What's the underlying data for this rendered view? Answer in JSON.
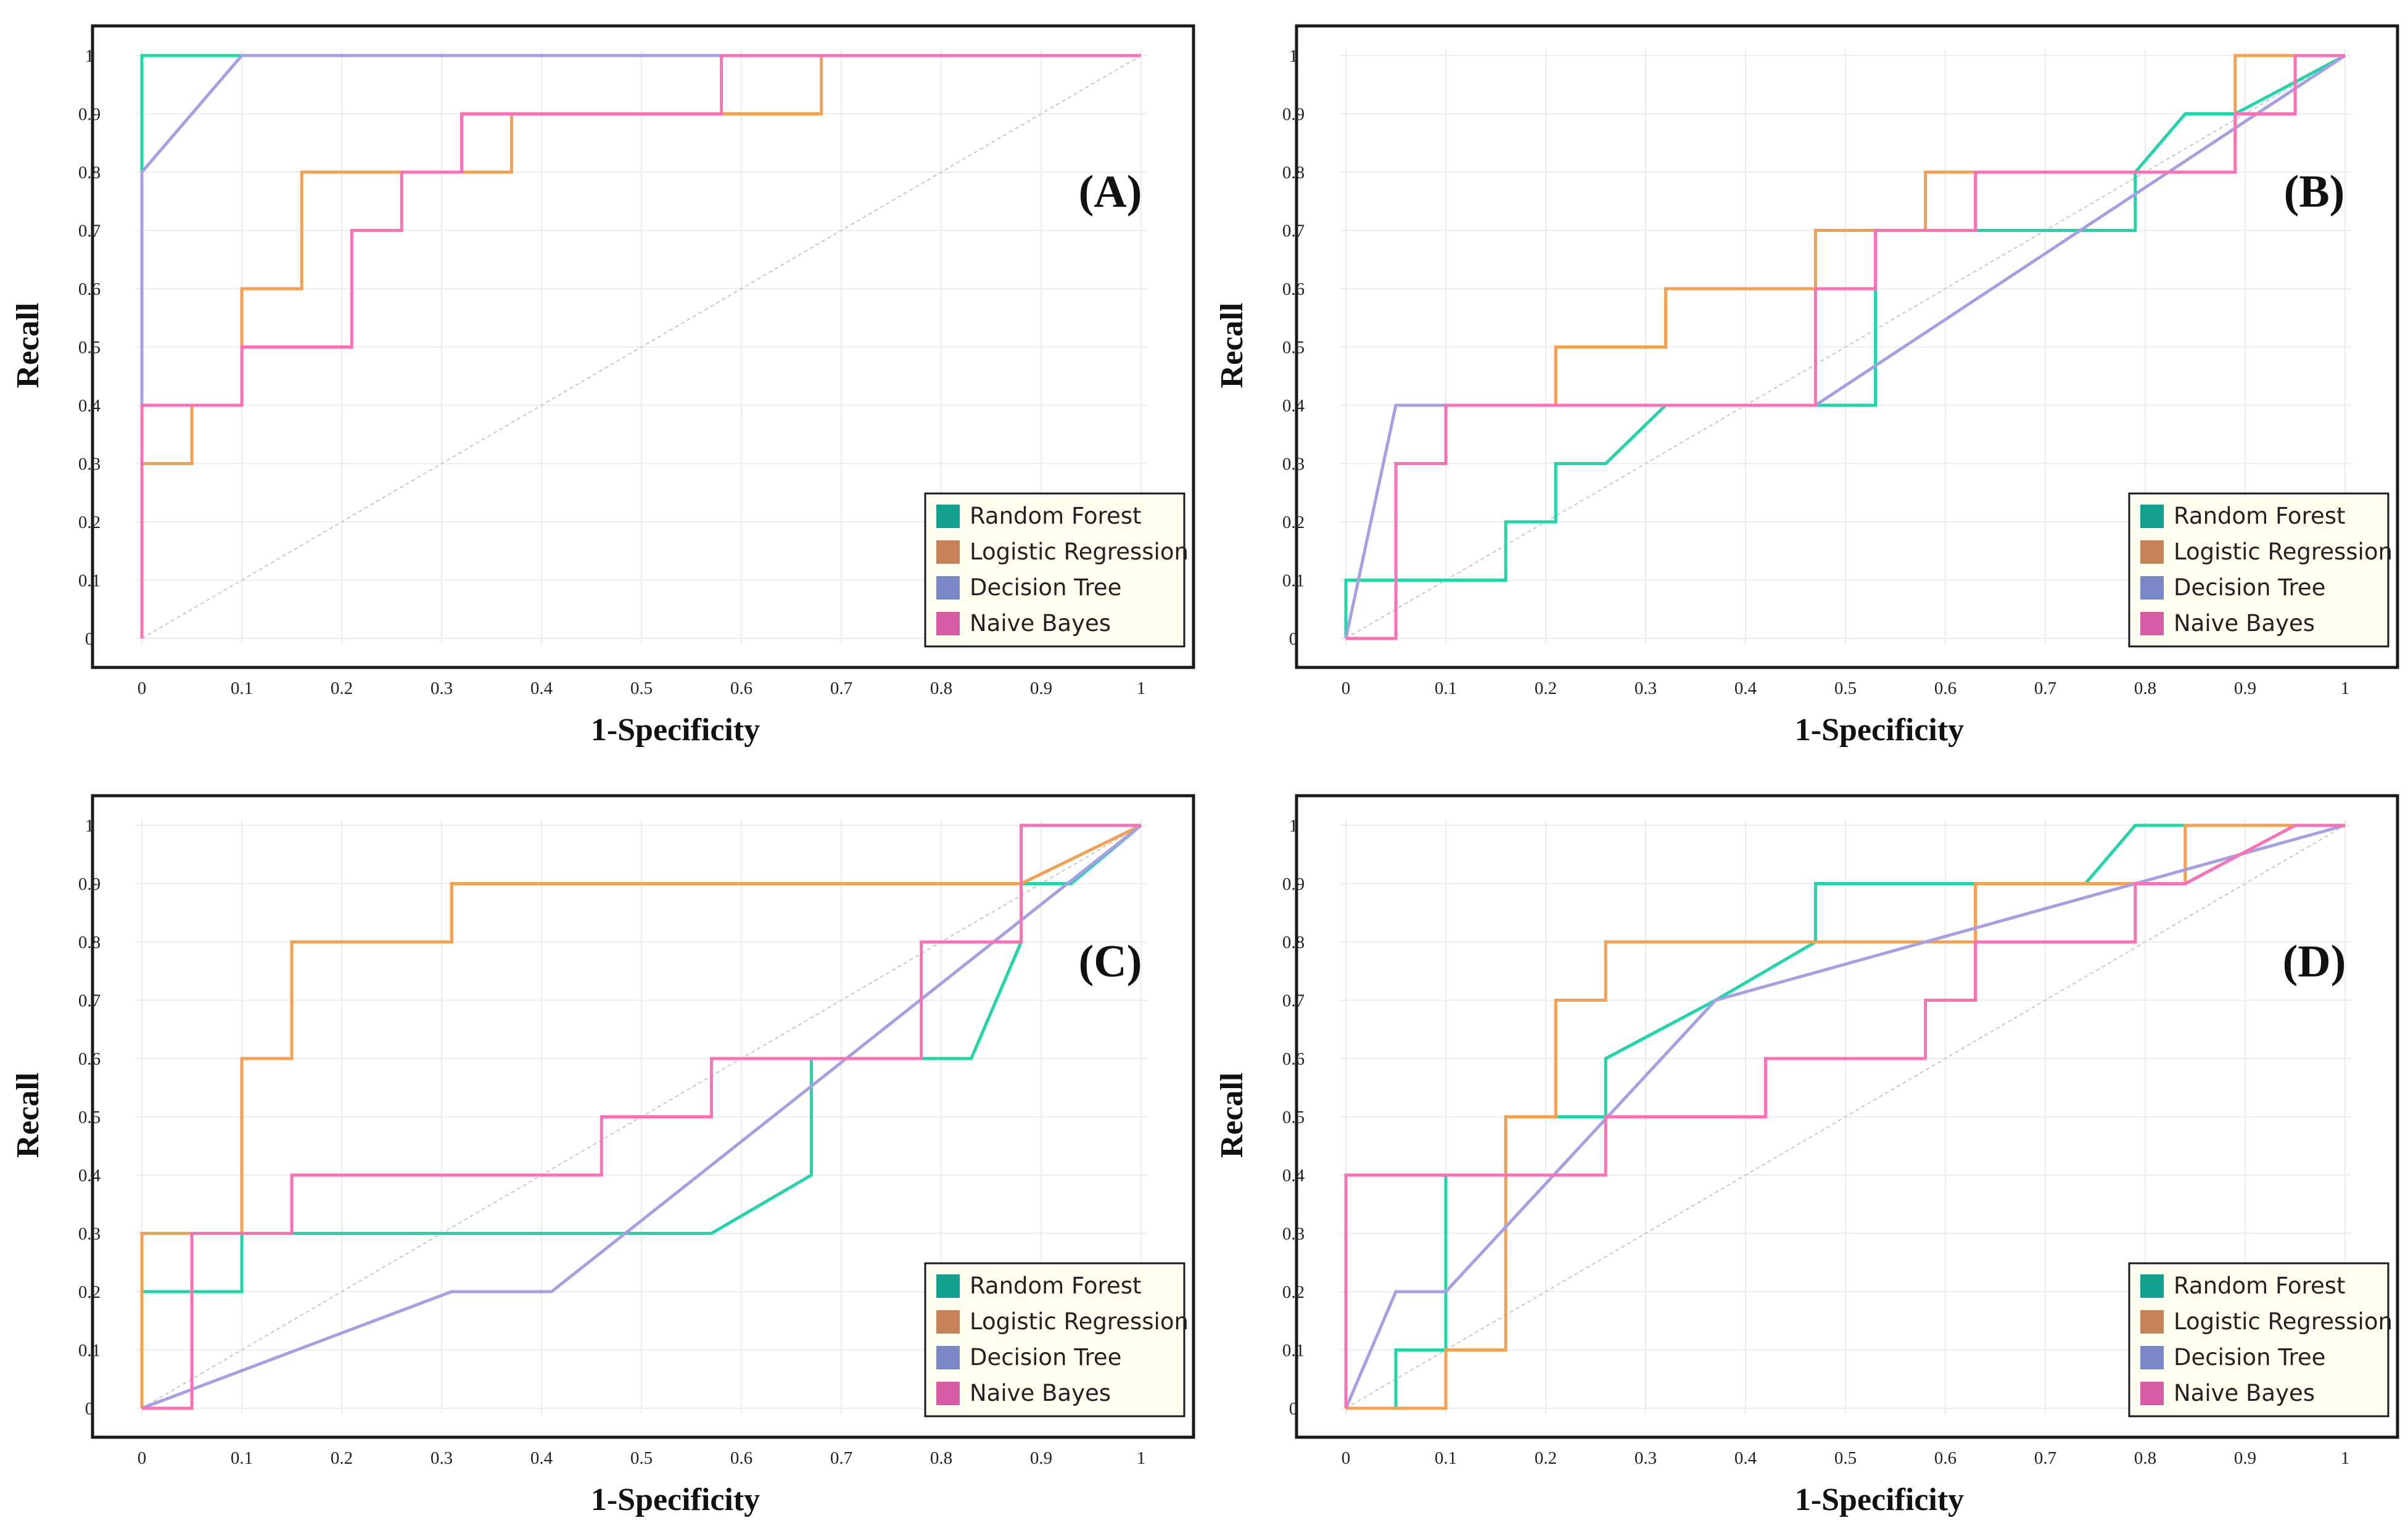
{
  "colors": {
    "Random Forest": "#1fd6a8",
    "Logistic Regression": "#f5a050",
    "Decision Tree": "#a5a0e6",
    "Naive Bayes": "#ff6fb6",
    "legend_swatches": {
      "Random Forest": "#12a08f",
      "Logistic Regression": "#c7825a",
      "Decision Tree": "#7b86c7",
      "Naive Bayes": "#d85ca5"
    }
  },
  "chart_data": [
    {
      "id": "A",
      "type": "line",
      "label": "(A)",
      "xlabel": "1-Specificity",
      "ylabel": "Recall",
      "xlim": [
        0,
        1
      ],
      "ylim": [
        0,
        1
      ],
      "xticks": [
        "0",
        "0.1",
        "0.2",
        "0.3",
        "0.4",
        "0.5",
        "0.6",
        "0.7",
        "0.8",
        "0.9",
        "1"
      ],
      "yticks": [
        "0",
        "0.1",
        "0.2",
        "0.3",
        "0.4",
        "0.5",
        "0.6",
        "0.7",
        "0.8",
        "0.9",
        "1"
      ],
      "legend": [
        "Random Forest",
        "Logistic Regression",
        "Decision Tree",
        "Naive Bayes"
      ],
      "series": [
        {
          "name": "Random Forest",
          "points": [
            [
              0,
              0
            ],
            [
              0,
              1
            ],
            [
              0.1,
              1
            ],
            [
              1,
              1
            ]
          ]
        },
        {
          "name": "Logistic Regression",
          "points": [
            [
              0,
              0
            ],
            [
              0,
              0.3
            ],
            [
              0.05,
              0.3
            ],
            [
              0.05,
              0.4
            ],
            [
              0.1,
              0.4
            ],
            [
              0.1,
              0.6
            ],
            [
              0.16,
              0.6
            ],
            [
              0.16,
              0.8
            ],
            [
              0.37,
              0.8
            ],
            [
              0.37,
              0.9
            ],
            [
              0.68,
              0.9
            ],
            [
              0.68,
              1
            ],
            [
              1,
              1
            ]
          ]
        },
        {
          "name": "Decision Tree",
          "points": [
            [
              0,
              0
            ],
            [
              0,
              0.8
            ],
            [
              0.1,
              1
            ],
            [
              1,
              1
            ]
          ]
        },
        {
          "name": "Naive Bayes",
          "points": [
            [
              0,
              0
            ],
            [
              0,
              0.4
            ],
            [
              0.1,
              0.4
            ],
            [
              0.1,
              0.5
            ],
            [
              0.21,
              0.5
            ],
            [
              0.21,
              0.7
            ],
            [
              0.26,
              0.7
            ],
            [
              0.26,
              0.8
            ],
            [
              0.32,
              0.8
            ],
            [
              0.32,
              0.9
            ],
            [
              0.58,
              0.9
            ],
            [
              0.58,
              1
            ],
            [
              1,
              1
            ]
          ]
        }
      ]
    },
    {
      "id": "B",
      "type": "line",
      "label": "(B)",
      "xlabel": "1-Specificity",
      "ylabel": "Recall",
      "xlim": [
        0,
        1
      ],
      "ylim": [
        0,
        1
      ],
      "xticks": [
        "0",
        "0.1",
        "0.2",
        "0.3",
        "0.4",
        "0.5",
        "0.6",
        "0.7",
        "0.8",
        "0.9",
        "1"
      ],
      "yticks": [
        "0",
        "0.1",
        "0.2",
        "0.3",
        "0.4",
        "0.5",
        "0.6",
        "0.7",
        "0.8",
        "0.9",
        "1"
      ],
      "legend": [
        "Random Forest",
        "Logistic Regression",
        "Decision Tree",
        "Naive Bayes"
      ],
      "series": [
        {
          "name": "Random Forest",
          "points": [
            [
              0,
              0
            ],
            [
              0,
              0.1
            ],
            [
              0.16,
              0.1
            ],
            [
              0.16,
              0.2
            ],
            [
              0.21,
              0.2
            ],
            [
              0.21,
              0.3
            ],
            [
              0.26,
              0.3
            ],
            [
              0.32,
              0.4
            ],
            [
              0.47,
              0.4
            ],
            [
              0.53,
              0.4
            ],
            [
              0.53,
              0.6
            ],
            [
              0.53,
              0.7
            ],
            [
              0.63,
              0.7
            ],
            [
              0.79,
              0.7
            ],
            [
              0.79,
              0.8
            ],
            [
              0.84,
              0.9
            ],
            [
              0.89,
              0.9
            ],
            [
              1,
              1
            ]
          ]
        },
        {
          "name": "Logistic Regression",
          "points": [
            [
              0,
              0
            ],
            [
              0.05,
              0
            ],
            [
              0.05,
              0.3
            ],
            [
              0.1,
              0.3
            ],
            [
              0.1,
              0.4
            ],
            [
              0.21,
              0.4
            ],
            [
              0.21,
              0.5
            ],
            [
              0.32,
              0.5
            ],
            [
              0.32,
              0.6
            ],
            [
              0.47,
              0.6
            ],
            [
              0.47,
              0.7
            ],
            [
              0.58,
              0.7
            ],
            [
              0.58,
              0.8
            ],
            [
              0.89,
              0.8
            ],
            [
              0.89,
              1
            ],
            [
              1,
              1
            ]
          ]
        },
        {
          "name": "Decision Tree",
          "points": [
            [
              0,
              0
            ],
            [
              0.05,
              0.4
            ],
            [
              0.47,
              0.4
            ],
            [
              1,
              1
            ]
          ]
        },
        {
          "name": "Naive Bayes",
          "points": [
            [
              0,
              0
            ],
            [
              0.05,
              0
            ],
            [
              0.05,
              0.3
            ],
            [
              0.1,
              0.3
            ],
            [
              0.1,
              0.4
            ],
            [
              0.47,
              0.4
            ],
            [
              0.47,
              0.6
            ],
            [
              0.53,
              0.6
            ],
            [
              0.53,
              0.7
            ],
            [
              0.63,
              0.7
            ],
            [
              0.63,
              0.8
            ],
            [
              0.89,
              0.8
            ],
            [
              0.89,
              0.9
            ],
            [
              0.95,
              0.9
            ],
            [
              0.95,
              1
            ],
            [
              1,
              1
            ]
          ]
        }
      ]
    },
    {
      "id": "C",
      "type": "line",
      "label": "(C)",
      "xlabel": "1-Specificity",
      "ylabel": "Recall",
      "xlim": [
        0,
        1
      ],
      "ylim": [
        0,
        1
      ],
      "xticks": [
        "0",
        "0.1",
        "0.2",
        "0.3",
        "0.4",
        "0.5",
        "0.6",
        "0.7",
        "0.8",
        "0.9",
        "1"
      ],
      "yticks": [
        "0",
        "0.1",
        "0.2",
        "0.3",
        "0.4",
        "0.5",
        "0.6",
        "0.7",
        "0.8",
        "0.9",
        "1"
      ],
      "legend": [
        "Random Forest",
        "Logistic Regression",
        "Decision Tree",
        "Naive Bayes"
      ],
      "series": [
        {
          "name": "Random Forest",
          "points": [
            [
              0,
              0
            ],
            [
              0,
              0.2
            ],
            [
              0.1,
              0.2
            ],
            [
              0.1,
              0.3
            ],
            [
              0.57,
              0.3
            ],
            [
              0.67,
              0.4
            ],
            [
              0.67,
              0.6
            ],
            [
              0.67,
              0.6
            ],
            [
              0.83,
              0.6
            ],
            [
              0.88,
              0.8
            ],
            [
              0.88,
              0.9
            ],
            [
              0.93,
              0.9
            ],
            [
              1,
              1
            ]
          ]
        },
        {
          "name": "Logistic Regression",
          "points": [
            [
              0,
              0
            ],
            [
              0,
              0.3
            ],
            [
              0.1,
              0.3
            ],
            [
              0.1,
              0.6
            ],
            [
              0.15,
              0.6
            ],
            [
              0.15,
              0.8
            ],
            [
              0.31,
              0.8
            ],
            [
              0.31,
              0.9
            ],
            [
              0.88,
              0.9
            ],
            [
              1,
              1
            ]
          ]
        },
        {
          "name": "Decision Tree",
          "points": [
            [
              0,
              0
            ],
            [
              0.31,
              0.2
            ],
            [
              0.41,
              0.2
            ],
            [
              1,
              1
            ]
          ]
        },
        {
          "name": "Naive Bayes",
          "points": [
            [
              0,
              0
            ],
            [
              0.05,
              0
            ],
            [
              0.05,
              0.3
            ],
            [
              0.15,
              0.3
            ],
            [
              0.15,
              0.4
            ],
            [
              0.46,
              0.4
            ],
            [
              0.46,
              0.5
            ],
            [
              0.57,
              0.5
            ],
            [
              0.57,
              0.6
            ],
            [
              0.78,
              0.6
            ],
            [
              0.78,
              0.8
            ],
            [
              0.88,
              0.8
            ],
            [
              0.88,
              1
            ],
            [
              1,
              1
            ]
          ]
        }
      ]
    },
    {
      "id": "D",
      "type": "line",
      "label": "(D)",
      "xlabel": "1-Specificity",
      "ylabel": "Recall",
      "xlim": [
        0,
        1
      ],
      "ylim": [
        0,
        1
      ],
      "xticks": [
        "0",
        "0.1",
        "0.2",
        "0.3",
        "0.4",
        "0.5",
        "0.6",
        "0.7",
        "0.8",
        "0.9",
        "1"
      ],
      "yticks": [
        "0",
        "0.1",
        "0.2",
        "0.3",
        "0.4",
        "0.5",
        "0.6",
        "0.7",
        "0.8",
        "0.9",
        "1"
      ],
      "legend": [
        "Random Forest",
        "Logistic Regression",
        "Decision Tree",
        "Naive Bayes"
      ],
      "series": [
        {
          "name": "Random Forest",
          "points": [
            [
              0,
              0
            ],
            [
              0.05,
              0
            ],
            [
              0.05,
              0.1
            ],
            [
              0.1,
              0.1
            ],
            [
              0.1,
              0.4
            ],
            [
              0.1,
              0.4
            ],
            [
              0.16,
              0.4
            ],
            [
              0.16,
              0.5
            ],
            [
              0.26,
              0.5
            ],
            [
              0.26,
              0.6
            ],
            [
              0.37,
              0.7
            ],
            [
              0.47,
              0.8
            ],
            [
              0.47,
              0.9
            ],
            [
              0.63,
              0.9
            ],
            [
              0.74,
              0.9
            ],
            [
              0.79,
              1
            ],
            [
              1,
              1
            ]
          ]
        },
        {
          "name": "Logistic Regression",
          "points": [
            [
              0,
              0
            ],
            [
              0.1,
              0
            ],
            [
              0.1,
              0.1
            ],
            [
              0.16,
              0.1
            ],
            [
              0.16,
              0.5
            ],
            [
              0.21,
              0.5
            ],
            [
              0.21,
              0.7
            ],
            [
              0.26,
              0.7
            ],
            [
              0.26,
              0.8
            ],
            [
              0.63,
              0.8
            ],
            [
              0.63,
              0.9
            ],
            [
              0.84,
              0.9
            ],
            [
              0.84,
              1
            ],
            [
              1,
              1
            ]
          ]
        },
        {
          "name": "Decision Tree",
          "points": [
            [
              0,
              0
            ],
            [
              0.05,
              0.2
            ],
            [
              0.1,
              0.2
            ],
            [
              0.37,
              0.7
            ],
            [
              1,
              1
            ]
          ]
        },
        {
          "name": "Naive Bayes",
          "points": [
            [
              0,
              0
            ],
            [
              0,
              0.4
            ],
            [
              0.26,
              0.4
            ],
            [
              0.26,
              0.5
            ],
            [
              0.42,
              0.5
            ],
            [
              0.42,
              0.6
            ],
            [
              0.58,
              0.6
            ],
            [
              0.58,
              0.7
            ],
            [
              0.63,
              0.7
            ],
            [
              0.63,
              0.8
            ],
            [
              0.79,
              0.8
            ],
            [
              0.79,
              0.9
            ],
            [
              0.84,
              0.9
            ],
            [
              0.95,
              1
            ],
            [
              1,
              1
            ]
          ]
        }
      ]
    }
  ]
}
